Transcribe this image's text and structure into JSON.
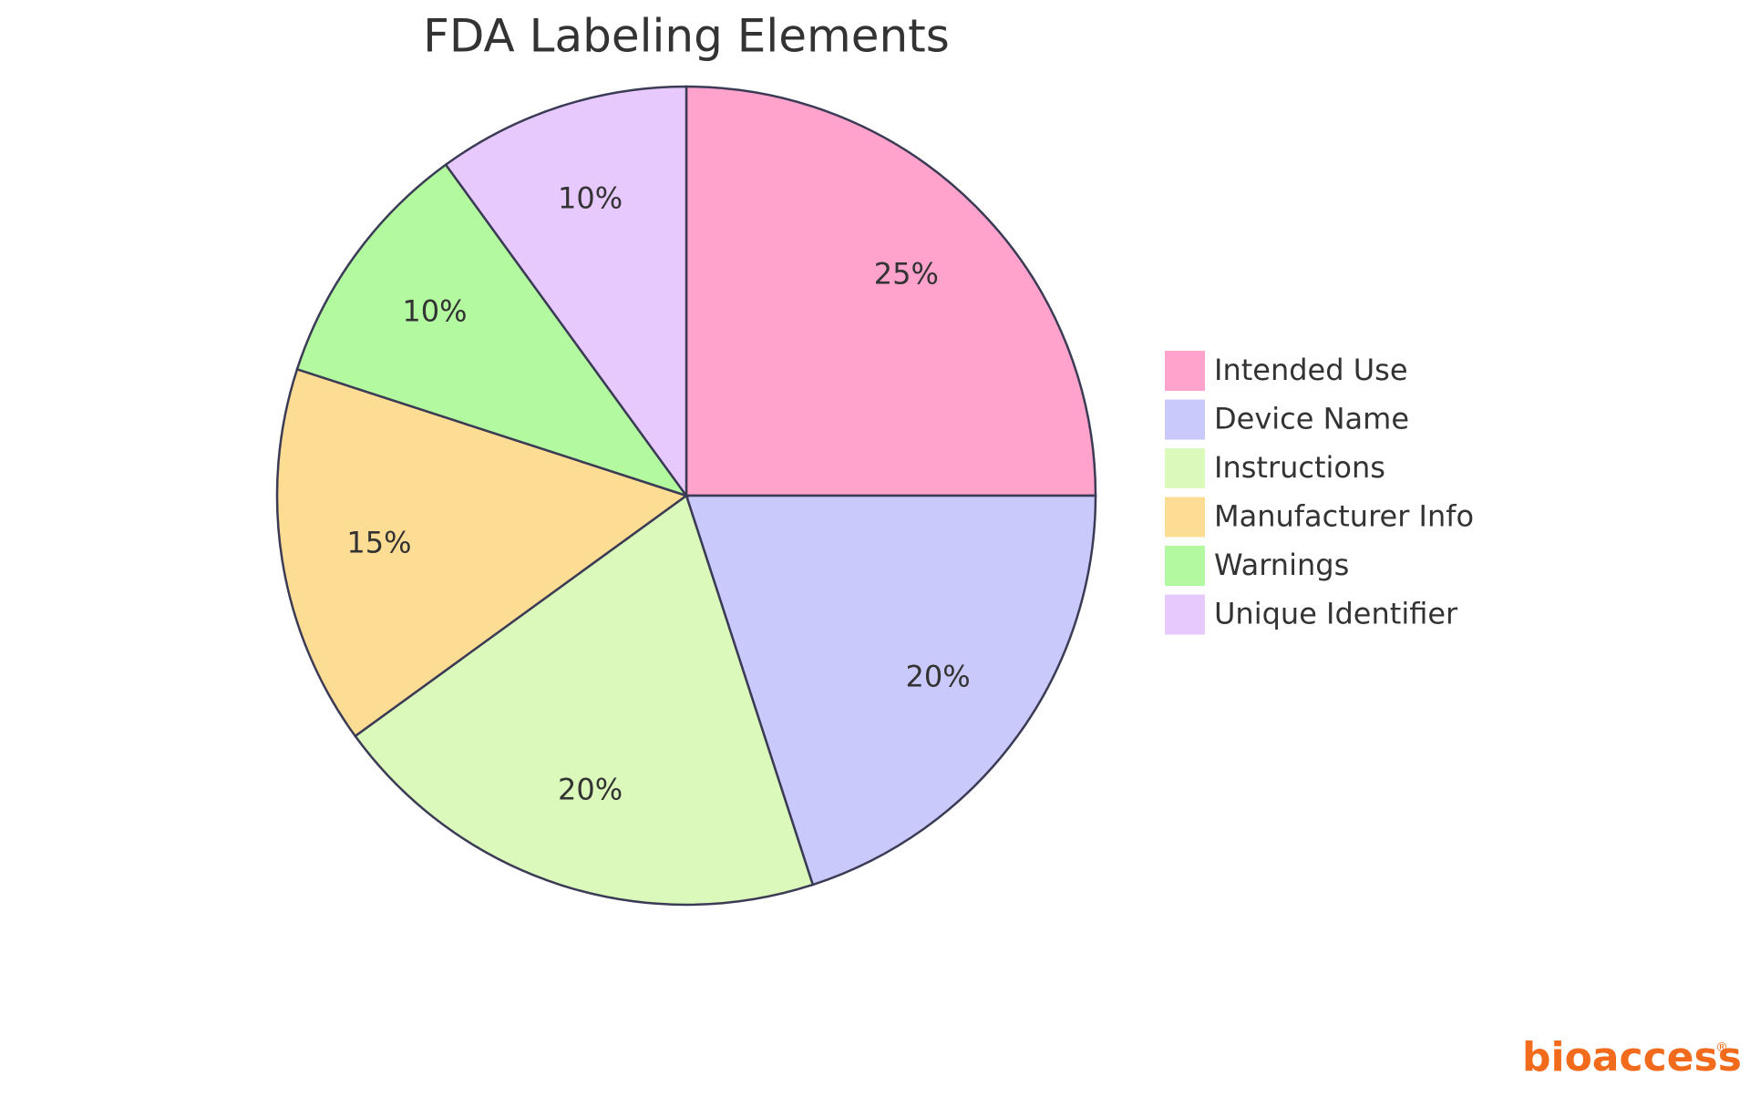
{
  "chart_data": {
    "type": "pie",
    "title": "FDA Labeling Elements",
    "categories": [
      "Intended Use",
      "Device Name",
      "Instructions",
      "Manufacturer Info",
      "Warnings",
      "Unique Identifier"
    ],
    "values": [
      25,
      20,
      20,
      15,
      10,
      10
    ],
    "value_labels": [
      "25%",
      "20%",
      "20%",
      "15%",
      "10%",
      "10%"
    ],
    "colors": [
      "#ffa3cc",
      "#c9c9fc",
      "#dbf9bb",
      "#fddc93",
      "#b3f9a0",
      "#e7c9fd"
    ],
    "legend": "right"
  },
  "logo": {
    "name": "bioaccess",
    "mark": "®"
  }
}
